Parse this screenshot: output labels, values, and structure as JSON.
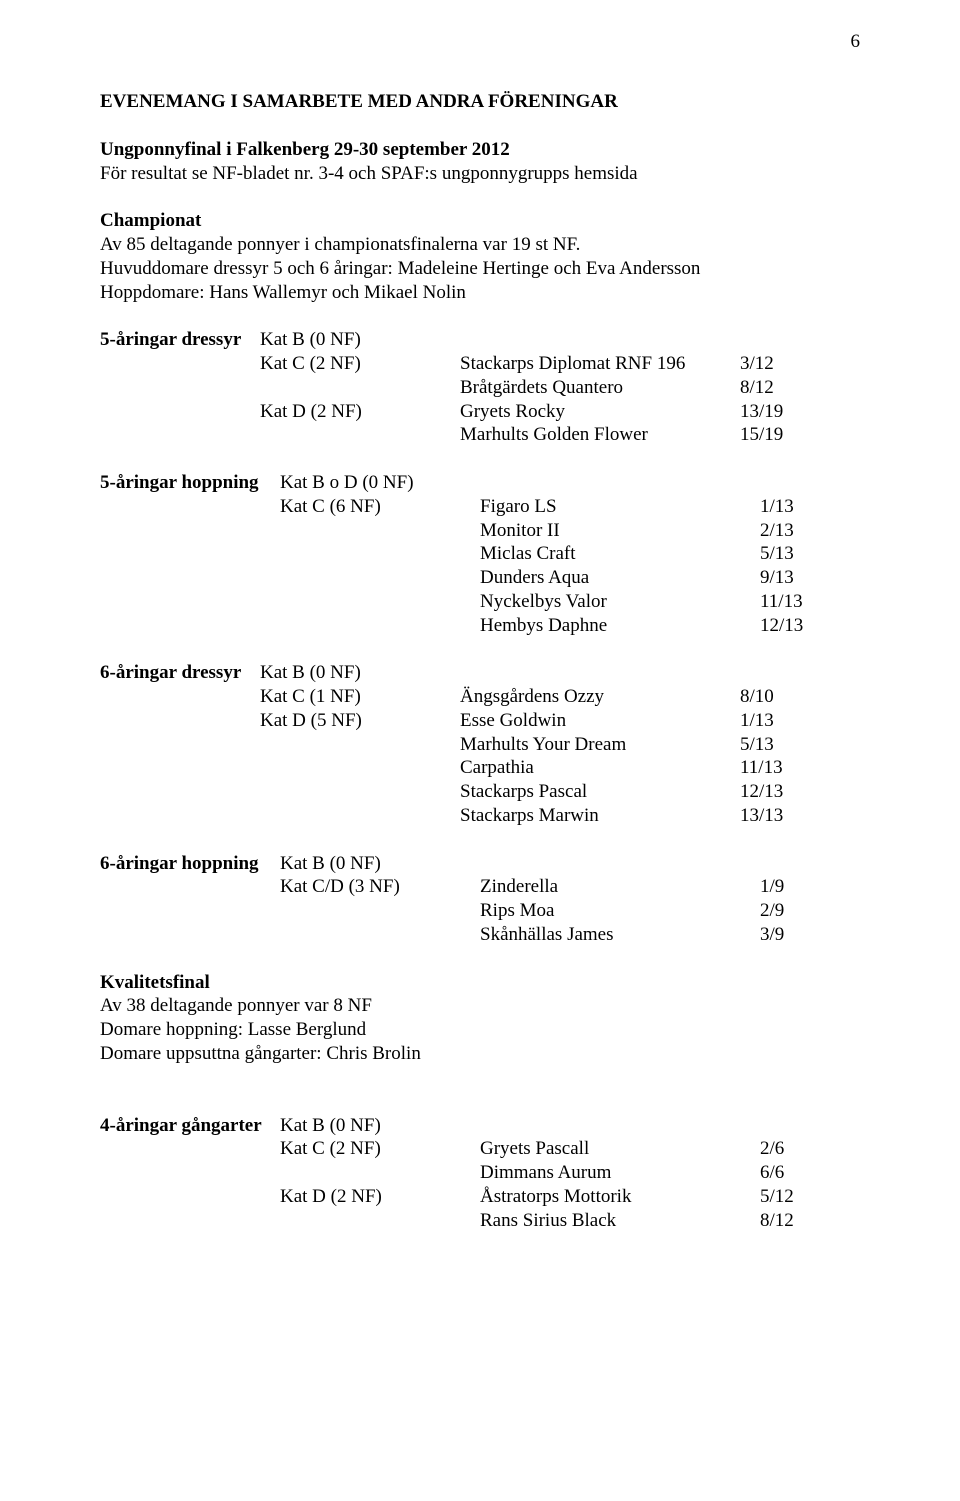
{
  "page_number": "6",
  "heading": "EVENEMANG I SAMARBETE MED ANDRA FÖRENINGAR",
  "intro": {
    "title": "Ungponnyfinal i Falkenberg 29-30 september 2012",
    "line": "För resultat se NF-bladet nr. 3-4 och SPAF:s ungponnygrupps hemsida"
  },
  "championat": {
    "title": "Championat",
    "line1": "Av 85 deltagande ponnyer i championatsfinalerna var 19 st NF.",
    "line2": "Huvuddomare dressyr 5 och 6 åringar: Madeleine Hertinge och Eva Andersson",
    "line3": "Hoppdomare: Hans Wallemyr och Mikael Nolin"
  },
  "groups": [
    {
      "title": "5-åringar dressyr",
      "head_kat": "Kat B (0 NF)",
      "rows": [
        {
          "kat": "Kat C (2 NF)",
          "name": "Stackarps Diplomat RNF 196",
          "val": "3/12"
        },
        {
          "kat": "",
          "name": "Bråtgärdets Quantero",
          "val": "8/12"
        },
        {
          "kat": "Kat D (2 NF)",
          "name": "Gryets Rocky",
          "val": "13/19"
        },
        {
          "kat": "",
          "name": "Marhults Golden Flower",
          "val": "15/19"
        }
      ]
    },
    {
      "title": "5-åringar hoppning",
      "head_kat": "Kat B o D (0 NF)",
      "rows": [
        {
          "kat": "Kat C (6 NF)",
          "name": "Figaro LS",
          "val": "1/13"
        },
        {
          "kat": "",
          "name": "Monitor II",
          "val": "2/13"
        },
        {
          "kat": "",
          "name": "Miclas Craft",
          "val": "5/13"
        },
        {
          "kat": "",
          "name": "Dunders Aqua",
          "val": "9/13"
        },
        {
          "kat": "",
          "name": "Nyckelbys Valor",
          "val": "11/13"
        },
        {
          "kat": "",
          "name": "Hembys Daphne",
          "val": "12/13"
        }
      ]
    },
    {
      "title": "6-åringar dressyr",
      "head_kat": "Kat B (0 NF)",
      "rows": [
        {
          "kat": "Kat C (1 NF)",
          "name": "Ängsgårdens Ozzy",
          "val": "8/10"
        },
        {
          "kat": "Kat D (5 NF)",
          "name": "Esse Goldwin",
          "val": "1/13"
        },
        {
          "kat": "",
          "name": "Marhults Your Dream",
          "val": "5/13"
        },
        {
          "kat": "",
          "name": "Carpathia",
          "val": "11/13"
        },
        {
          "kat": "",
          "name": "Stackarps Pascal",
          "val": "12/13"
        },
        {
          "kat": "",
          "name": "Stackarps Marwin",
          "val": "13/13"
        }
      ]
    },
    {
      "title": "6-åringar hoppning",
      "head_kat": "Kat B (0 NF)",
      "rows": [
        {
          "kat": "Kat C/D (3 NF)",
          "name": "Zinderella",
          "val": "1/9"
        },
        {
          "kat": "",
          "name": "Rips Moa",
          "val": "2/9"
        },
        {
          "kat": "",
          "name": "Skånhällas James",
          "val": "3/9"
        }
      ]
    }
  ],
  "kvalitet": {
    "title": "Kvalitetsfinal",
    "line1": "Av 38 deltagande ponnyer var 8 NF",
    "line2": "Domare hoppning: Lasse Berglund",
    "line3": "Domare uppsuttna gångarter: Chris Brolin"
  },
  "gangarter": {
    "title": "4-åringar gångarter",
    "head_kat": "Kat B (0 NF)",
    "rows": [
      {
        "kat": "Kat C (2 NF)",
        "name": "Gryets Pascall",
        "val": "2/6"
      },
      {
        "kat": "",
        "name": "Dimmans Aurum",
        "val": "6/6"
      },
      {
        "kat": "Kat D (2 NF)",
        "name": "Åstratorps Mottorik",
        "val": "5/12"
      },
      {
        "kat": "",
        "name": "Rans Sirius Black",
        "val": "8/12"
      }
    ]
  }
}
